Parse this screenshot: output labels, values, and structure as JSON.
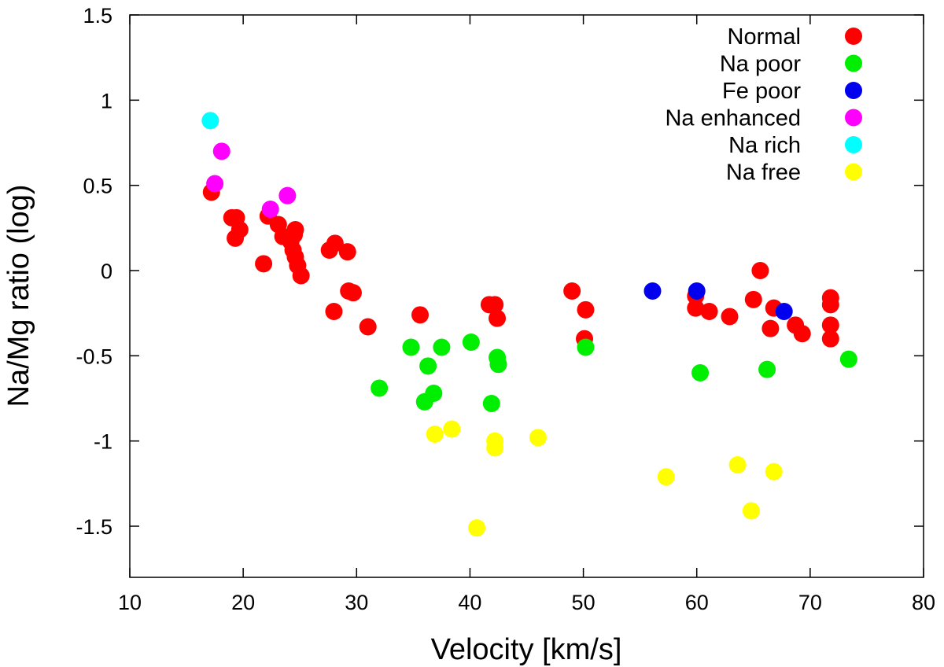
{
  "chart_data": {
    "type": "scatter",
    "title": "",
    "xlabel": "Velocity [km/s]",
    "ylabel": "Na/Mg ratio (log)",
    "xlim": [
      10,
      80
    ],
    "ylim": [
      -1.8,
      1.5
    ],
    "xticks": [
      10,
      20,
      30,
      40,
      50,
      60,
      70,
      80
    ],
    "yticks": [
      1.5,
      1,
      0.5,
      0,
      -0.5,
      -1,
      -1.5
    ],
    "grid": false,
    "legend_position": "top-right",
    "series": [
      {
        "name": "Normal",
        "color": "#ff0000",
        "points": [
          [
            17.2,
            0.46
          ],
          [
            19.0,
            0.31
          ],
          [
            19.4,
            0.31
          ],
          [
            19.3,
            0.19
          ],
          [
            19.7,
            0.24
          ],
          [
            21.8,
            0.04
          ],
          [
            22.2,
            0.32
          ],
          [
            23.1,
            0.27
          ],
          [
            23.5,
            0.2
          ],
          [
            24.2,
            0.17
          ],
          [
            24.6,
            0.24
          ],
          [
            24.5,
            0.21
          ],
          [
            24.4,
            0.12
          ],
          [
            24.6,
            0.08
          ],
          [
            24.8,
            0.03
          ],
          [
            25.1,
            -0.03
          ],
          [
            27.6,
            0.12
          ],
          [
            28.1,
            0.16
          ],
          [
            28.0,
            -0.24
          ],
          [
            29.2,
            0.11
          ],
          [
            29.3,
            -0.12
          ],
          [
            29.7,
            -0.13
          ],
          [
            31.0,
            -0.33
          ],
          [
            35.6,
            -0.26
          ],
          [
            41.7,
            -0.2
          ],
          [
            42.2,
            -0.2
          ],
          [
            42.4,
            -0.28
          ],
          [
            49.0,
            -0.12
          ],
          [
            50.2,
            -0.23
          ],
          [
            50.1,
            -0.4
          ],
          [
            59.9,
            -0.15
          ],
          [
            59.9,
            -0.22
          ],
          [
            61.1,
            -0.24
          ],
          [
            62.9,
            -0.27
          ],
          [
            65.0,
            -0.17
          ],
          [
            65.6,
            0.0
          ],
          [
            66.5,
            -0.34
          ],
          [
            66.8,
            -0.22
          ],
          [
            68.7,
            -0.32
          ],
          [
            69.3,
            -0.37
          ],
          [
            71.8,
            -0.16
          ],
          [
            71.8,
            -0.2
          ],
          [
            71.8,
            -0.32
          ],
          [
            71.8,
            -0.4
          ]
        ]
      },
      {
        "name": "Na poor",
        "color": "#00ee00",
        "points": [
          [
            32.0,
            -0.69
          ],
          [
            34.8,
            -0.45
          ],
          [
            36.0,
            -0.77
          ],
          [
            36.3,
            -0.56
          ],
          [
            36.8,
            -0.72
          ],
          [
            37.5,
            -0.45
          ],
          [
            40.1,
            -0.42
          ],
          [
            41.9,
            -0.78
          ],
          [
            42.4,
            -0.51
          ],
          [
            42.5,
            -0.55
          ],
          [
            50.2,
            -0.45
          ],
          [
            60.3,
            -0.6
          ],
          [
            66.2,
            -0.58
          ],
          [
            73.4,
            -0.52
          ]
        ]
      },
      {
        "name": "Fe poor",
        "color": "#0000ee",
        "points": [
          [
            56.1,
            -0.12
          ],
          [
            60.0,
            -0.12
          ],
          [
            67.7,
            -0.24
          ]
        ]
      },
      {
        "name": "Na enhanced",
        "color": "#ff00ff",
        "points": [
          [
            17.5,
            0.51
          ],
          [
            18.1,
            0.7
          ],
          [
            22.4,
            0.36
          ],
          [
            23.9,
            0.44
          ]
        ]
      },
      {
        "name": "Na rich",
        "color": "#00ffff",
        "points": [
          [
            17.1,
            0.88
          ]
        ]
      },
      {
        "name": "Na free",
        "color": "#ffff00",
        "points": [
          [
            36.9,
            -0.96
          ],
          [
            38.4,
            -0.93
          ],
          [
            40.6,
            -1.51
          ],
          [
            42.2,
            -1.0
          ],
          [
            42.2,
            -1.04
          ],
          [
            46.0,
            -0.98
          ],
          [
            57.3,
            -1.21
          ],
          [
            63.6,
            -1.14
          ],
          [
            64.8,
            -1.41
          ],
          [
            66.8,
            -1.18
          ]
        ]
      }
    ]
  }
}
